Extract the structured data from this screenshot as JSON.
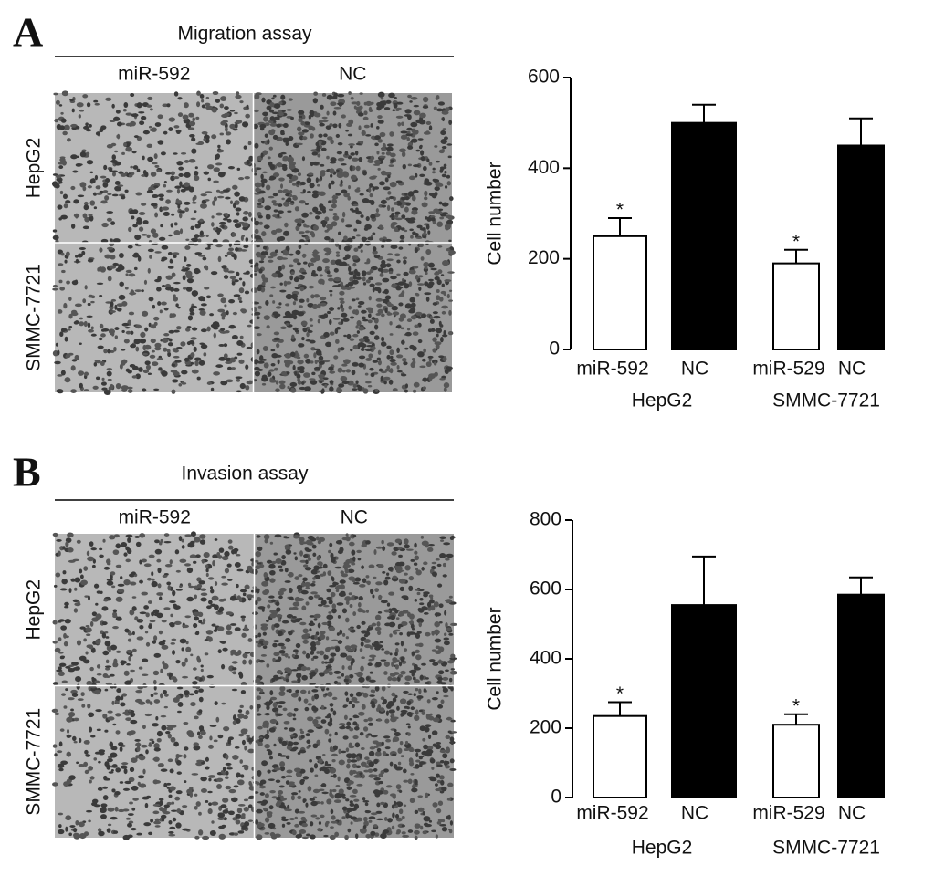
{
  "chart_data": [
    {
      "type": "bar",
      "panel": "A",
      "image_title": "Migration assay",
      "image_columns": [
        "miR-592",
        "NC"
      ],
      "image_rows": [
        "HepG2",
        "SMMC-7721"
      ],
      "y_label": "Cell number",
      "categories": [
        "miR-592",
        "NC",
        "miR-529",
        "NC"
      ],
      "groups": [
        "HepG2",
        "SMMC-7721"
      ],
      "values": [
        250,
        500,
        190,
        450
      ],
      "errors": [
        40,
        40,
        30,
        60
      ],
      "significance": [
        "*",
        null,
        "*",
        null
      ],
      "colors": [
        "#ffffff",
        "#000000",
        "#ffffff",
        "#000000"
      ],
      "ylim": [
        0,
        600
      ],
      "yticks": [
        0,
        200,
        400,
        600
      ]
    },
    {
      "type": "bar",
      "panel": "B",
      "image_title": "Invasion assay",
      "image_columns": [
        "miR-592",
        "NC"
      ],
      "image_rows": [
        "HepG2",
        "SMMC-7721"
      ],
      "y_label": "Cell number",
      "categories": [
        "miR-592",
        "NC",
        "miR-529",
        "NC"
      ],
      "groups": [
        "HepG2",
        "SMMC-7721"
      ],
      "values": [
        235,
        555,
        210,
        585
      ],
      "errors": [
        40,
        140,
        30,
        50
      ],
      "significance": [
        "*",
        null,
        "*",
        null
      ],
      "colors": [
        "#ffffff",
        "#000000",
        "#ffffff",
        "#000000"
      ],
      "ylim": [
        0,
        800
      ],
      "yticks": [
        0,
        200,
        400,
        600,
        800
      ]
    }
  ]
}
